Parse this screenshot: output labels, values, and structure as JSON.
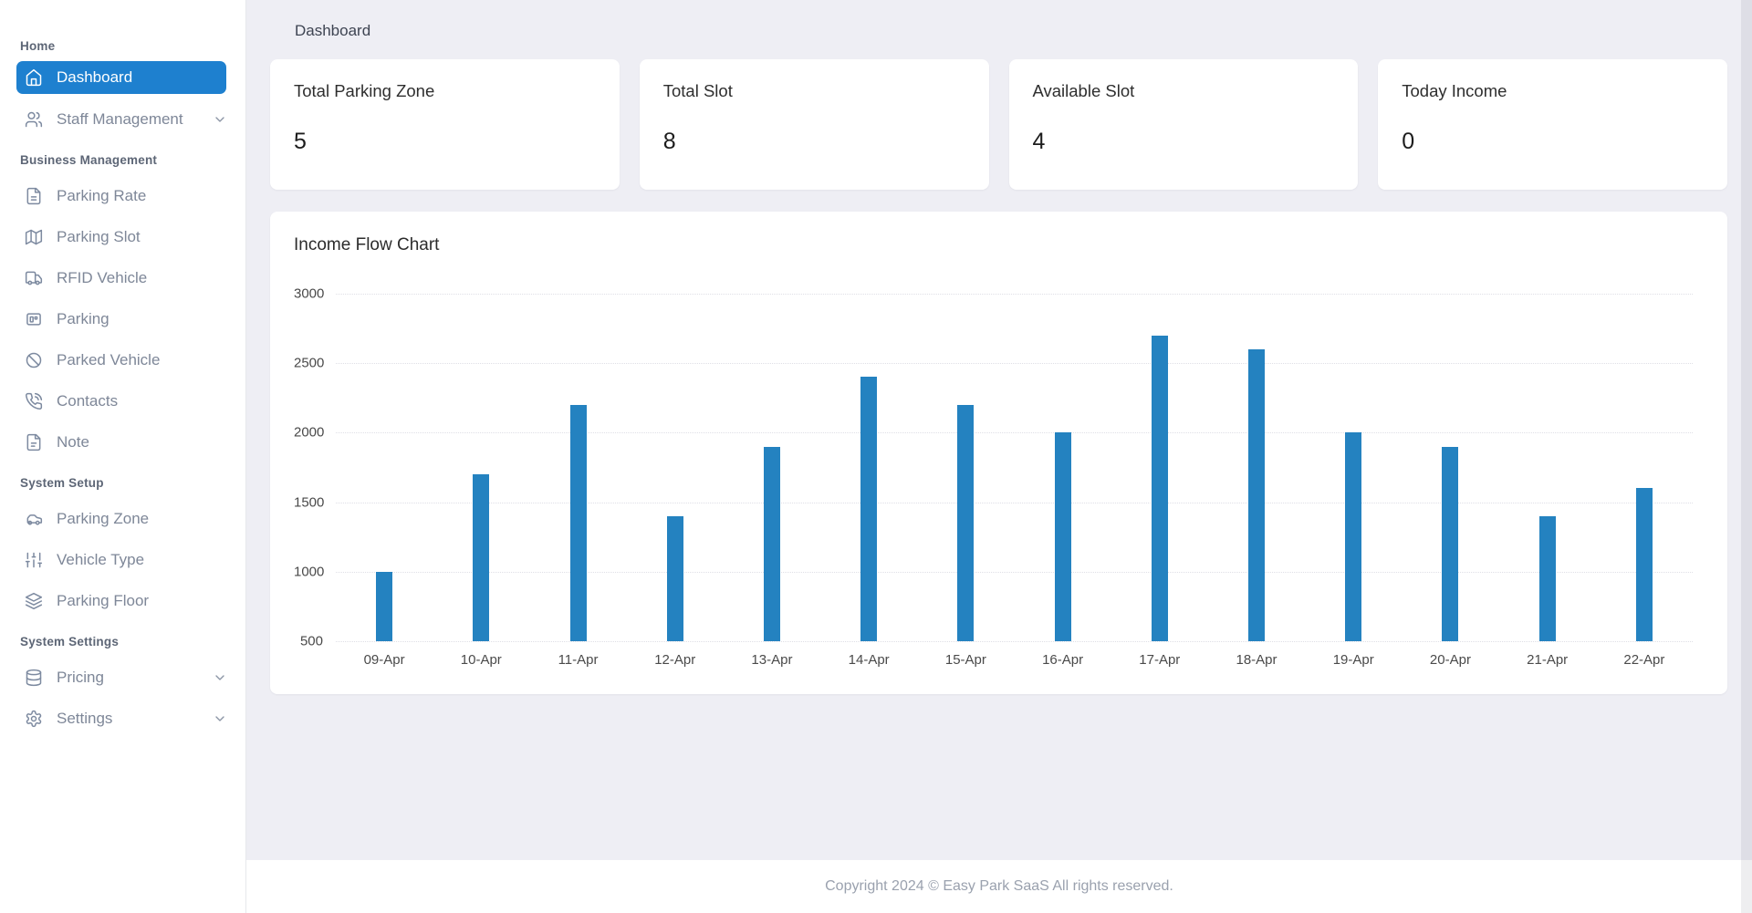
{
  "page_title": "Dashboard",
  "colors": {
    "accent_blue": "#1e80cf",
    "bar_blue": "#2482c0",
    "main_background": "#eeeef4",
    "sidebar_text": "#7e8798",
    "footer_text": "#9aa1ae"
  },
  "sidebar": {
    "sections": [
      {
        "heading": "Home",
        "items": [
          {
            "label": "Dashboard",
            "icon": "home-icon",
            "active": true,
            "chevron": false
          },
          {
            "label": "Staff Management",
            "icon": "users-icon",
            "active": false,
            "chevron": true
          }
        ]
      },
      {
        "heading": "Business Management",
        "items": [
          {
            "label": "Parking Rate",
            "icon": "file-text-icon",
            "active": false,
            "chevron": false
          },
          {
            "label": "Parking Slot",
            "icon": "map-icon",
            "active": false,
            "chevron": false
          },
          {
            "label": "RFID Vehicle",
            "icon": "truck-icon",
            "active": false,
            "chevron": false
          },
          {
            "label": "Parking",
            "icon": "parking-card-icon",
            "active": false,
            "chevron": false
          },
          {
            "label": "Parked Vehicle",
            "icon": "ban-icon",
            "active": false,
            "chevron": false
          },
          {
            "label": "Contacts",
            "icon": "phone-icon",
            "active": false,
            "chevron": false
          },
          {
            "label": "Note",
            "icon": "note-icon",
            "active": false,
            "chevron": false
          }
        ]
      },
      {
        "heading": "System Setup",
        "items": [
          {
            "label": "Parking Zone",
            "icon": "car-icon",
            "active": false,
            "chevron": false
          },
          {
            "label": "Vehicle Type",
            "icon": "sliders-icon",
            "active": false,
            "chevron": false
          },
          {
            "label": "Parking Floor",
            "icon": "layers-icon",
            "active": false,
            "chevron": false
          }
        ]
      },
      {
        "heading": "System Settings",
        "items": [
          {
            "label": "Pricing",
            "icon": "database-icon",
            "active": false,
            "chevron": true
          },
          {
            "label": "Settings",
            "icon": "gear-icon",
            "active": false,
            "chevron": true
          }
        ]
      }
    ]
  },
  "stats": [
    {
      "label": "Total Parking Zone",
      "value": "5"
    },
    {
      "label": "Total Slot",
      "value": "8"
    },
    {
      "label": "Available Slot",
      "value": "4"
    },
    {
      "label": "Today Income",
      "value": "0"
    }
  ],
  "chart_data": {
    "type": "bar",
    "title": "Income Flow Chart",
    "categories": [
      "09-Apr",
      "10-Apr",
      "11-Apr",
      "12-Apr",
      "13-Apr",
      "14-Apr",
      "15-Apr",
      "16-Apr",
      "17-Apr",
      "18-Apr",
      "19-Apr",
      "20-Apr",
      "21-Apr",
      "22-Apr"
    ],
    "values": [
      1000,
      1700,
      2200,
      1400,
      1900,
      2400,
      2200,
      2000,
      2700,
      2600,
      2000,
      1900,
      1400,
      1600
    ],
    "xlabel": "",
    "ylabel": "",
    "ylim": [
      500,
      3000
    ],
    "yticks": [
      500,
      1000,
      1500,
      2000,
      2500,
      3000
    ],
    "grid": "dotted-horizontal",
    "legend": "none",
    "bar_color": "#2482c0"
  },
  "footer": {
    "copyright": "Copyright 2024 © Easy Park SaaS All rights reserved."
  }
}
